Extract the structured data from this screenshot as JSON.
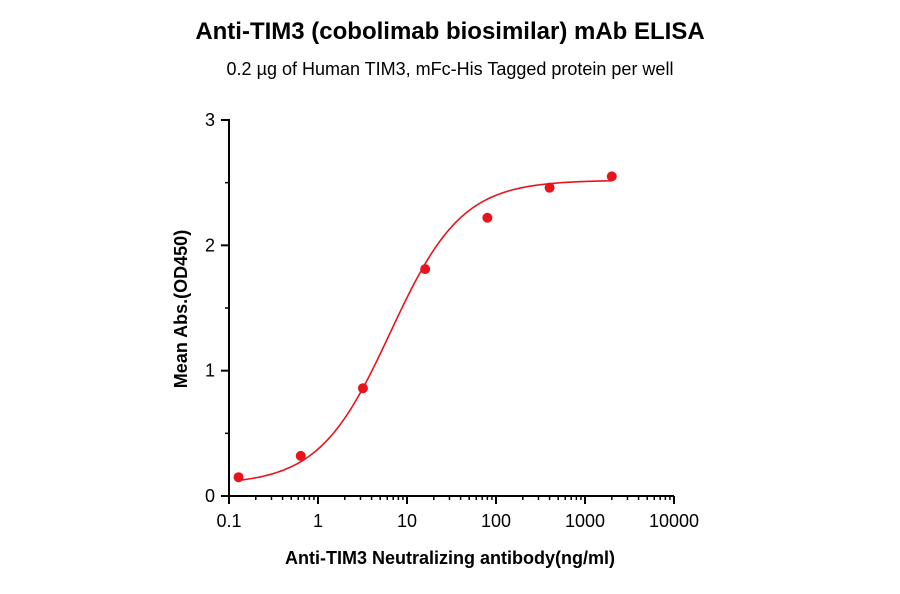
{
  "chart_data": {
    "type": "scatter",
    "title": "Anti-TIM3 (cobolimab biosimilar) mAb ELISA",
    "subtitle": "0.2 µg of Human TIM3, mFc-His Tagged protein per well",
    "xlabel": "Anti-TIM3 Neutralizing antibody(ng/ml)",
    "ylabel": "Mean Abs.(OD450)",
    "x_scale": "log",
    "xlim": [
      0.1,
      10000
    ],
    "ylim": [
      0,
      3
    ],
    "x_ticks": [
      {
        "value": 0.1,
        "label": "0.1"
      },
      {
        "value": 1,
        "label": "1"
      },
      {
        "value": 10,
        "label": "10"
      },
      {
        "value": 100,
        "label": "100"
      },
      {
        "value": 1000,
        "label": "1000"
      },
      {
        "value": 10000,
        "label": "10000"
      }
    ],
    "y_ticks": [
      {
        "value": 0,
        "label": "0"
      },
      {
        "value": 1,
        "label": "1"
      },
      {
        "value": 2,
        "label": "2"
      },
      {
        "value": 3,
        "label": "3"
      }
    ],
    "grid": false,
    "series": [
      {
        "color": "#e8141c",
        "points": [
          {
            "x": 0.128,
            "y": 0.15
          },
          {
            "x": 0.64,
            "y": 0.32
          },
          {
            "x": 3.2,
            "y": 0.86
          },
          {
            "x": 16,
            "y": 1.81
          },
          {
            "x": 80,
            "y": 2.22
          },
          {
            "x": 400,
            "y": 2.46
          },
          {
            "x": 2000,
            "y": 2.55
          }
        ],
        "fit": {
          "model": "4PL",
          "bottom": 0.09,
          "top": 2.52,
          "ec50": 6.5,
          "hill": 1.08
        }
      }
    ]
  }
}
